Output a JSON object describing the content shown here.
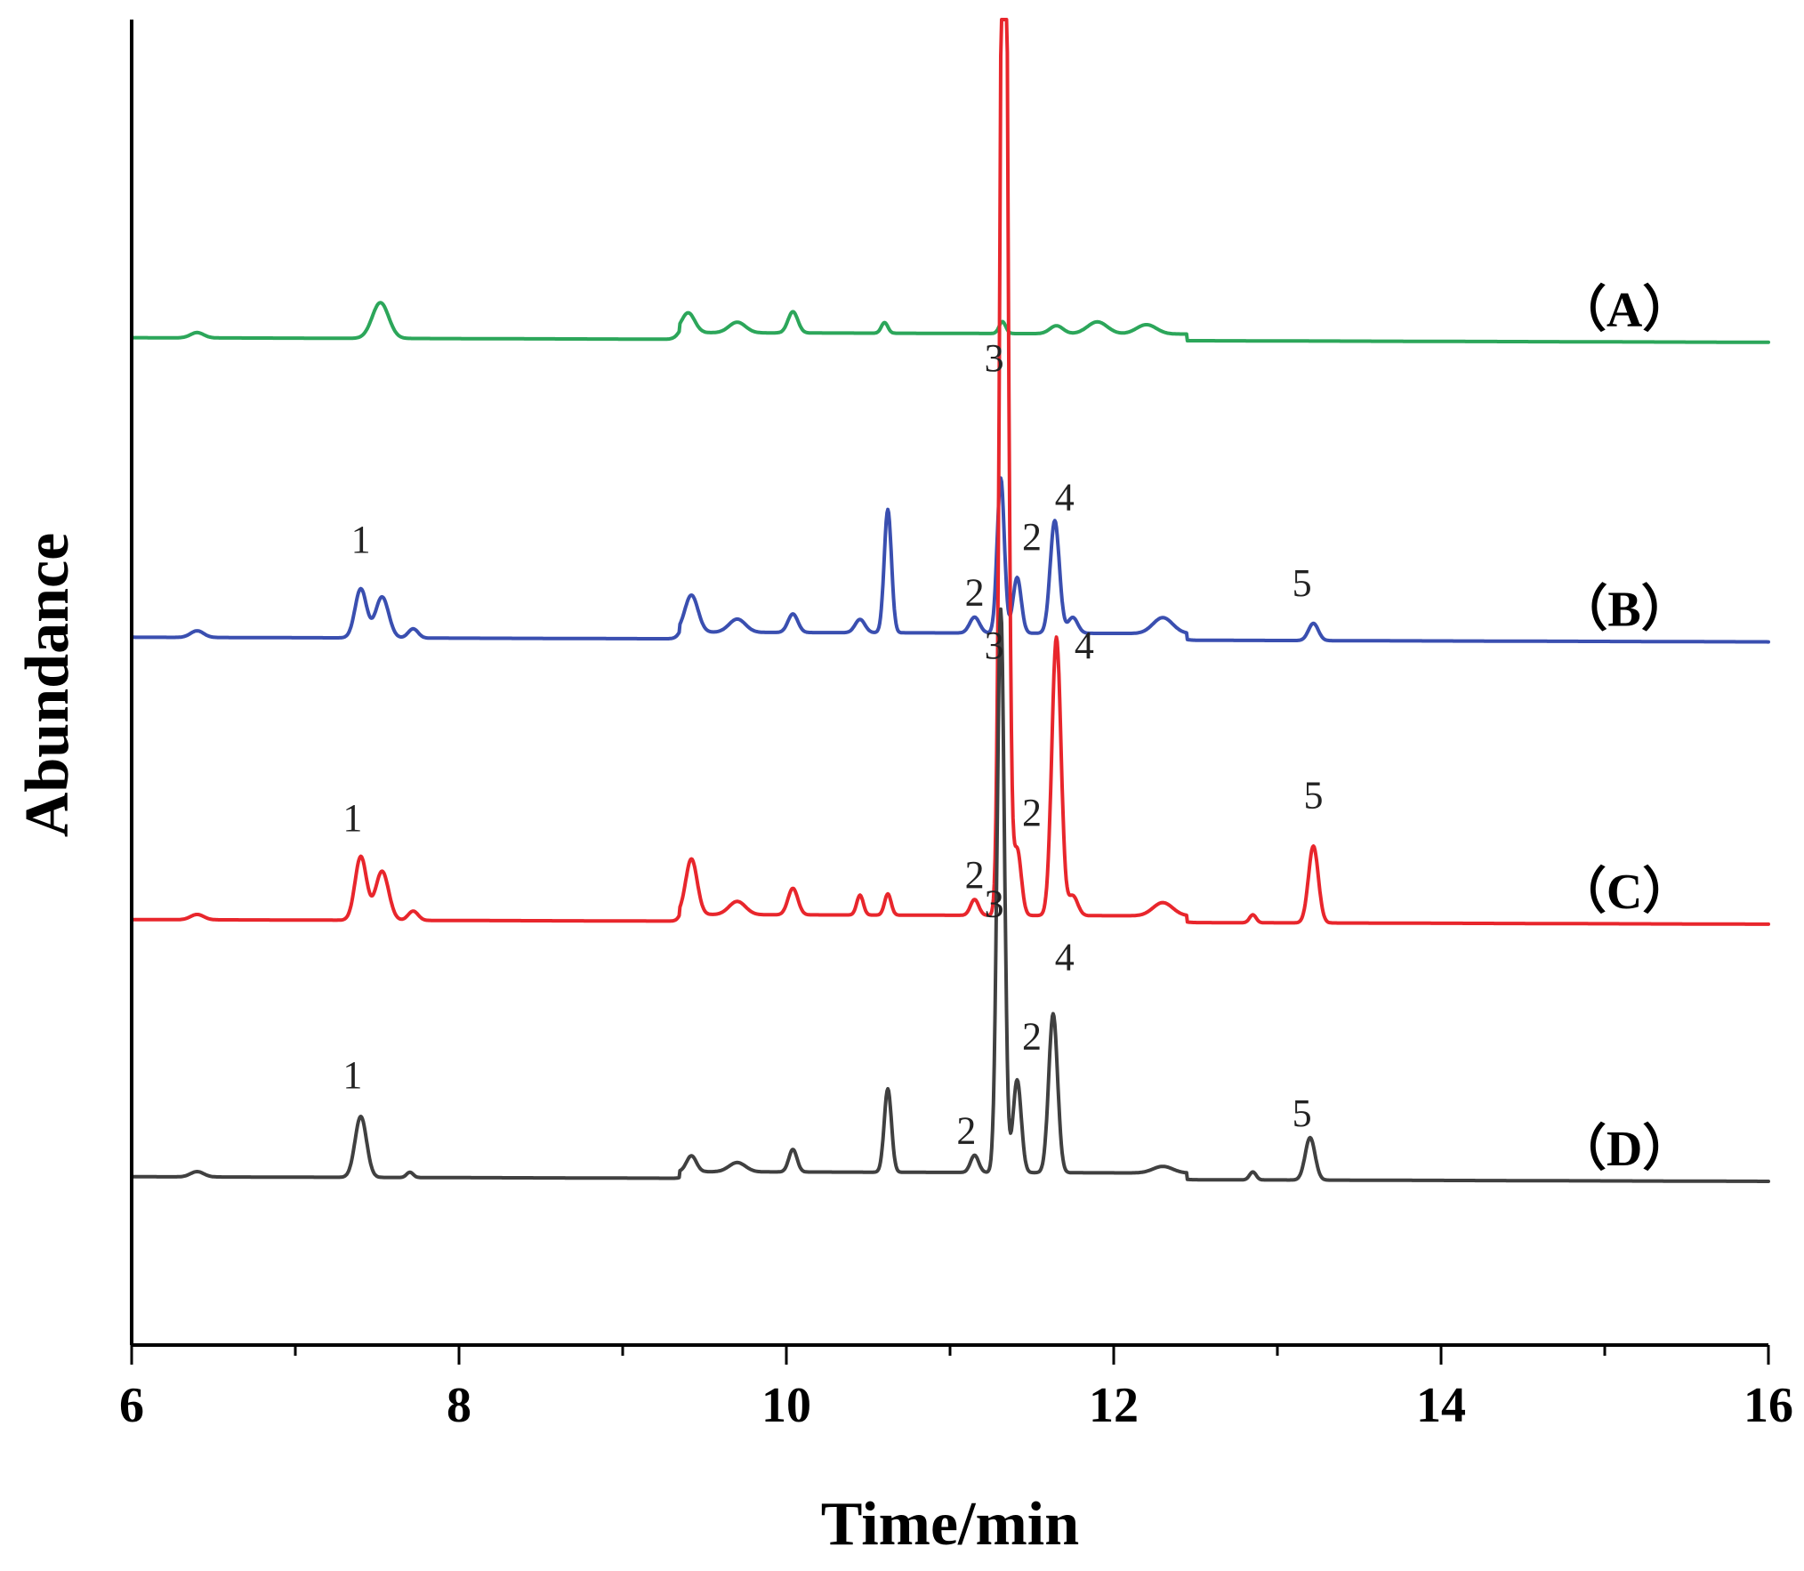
{
  "chart_data": {
    "type": "line",
    "title": "",
    "xlabel": "Time/min",
    "ylabel": "Abundance",
    "xlim": [
      6,
      16
    ],
    "xticks": [
      6,
      8,
      10,
      12,
      14,
      16
    ],
    "x_minor_step": 1,
    "grid": false,
    "y_tick_labels": false,
    "series": [
      {
        "name": "（A）",
        "color": "#2ca65a",
        "baseline": 0.76,
        "peaks": [
          {
            "x": 6.4,
            "h": 0.004,
            "w": 0.04
          },
          {
            "x": 7.52,
            "h": 0.027,
            "w": 0.05
          },
          {
            "x": 9.4,
            "h": 0.015,
            "w": 0.04
          },
          {
            "x": 9.7,
            "h": 0.008,
            "w": 0.05
          },
          {
            "x": 10.04,
            "h": 0.016,
            "w": 0.03
          },
          {
            "x": 10.6,
            "h": 0.008,
            "w": 0.02
          },
          {
            "x": 11.32,
            "h": 0.009,
            "w": 0.02
          },
          {
            "x": 11.65,
            "h": 0.006,
            "w": 0.04
          },
          {
            "x": 11.9,
            "h": 0.009,
            "w": 0.06
          },
          {
            "x": 12.2,
            "h": 0.007,
            "w": 0.06
          }
        ],
        "plateau": [
          9.35,
          12.45,
          0.005
        ],
        "labels": []
      },
      {
        "name": "（B）",
        "color": "#3a4fb0",
        "baseline": 0.534,
        "peaks": [
          {
            "x": 6.4,
            "h": 0.005,
            "w": 0.04
          },
          {
            "x": 7.4,
            "h": 0.037,
            "w": 0.035
          },
          {
            "x": 7.53,
            "h": 0.031,
            "w": 0.04
          },
          {
            "x": 7.72,
            "h": 0.007,
            "w": 0.03
          },
          {
            "x": 9.42,
            "h": 0.028,
            "w": 0.04
          },
          {
            "x": 9.7,
            "h": 0.01,
            "w": 0.05
          },
          {
            "x": 10.04,
            "h": 0.014,
            "w": 0.03
          },
          {
            "x": 10.45,
            "h": 0.01,
            "w": 0.03
          },
          {
            "x": 10.62,
            "h": 0.093,
            "w": 0.022
          },
          {
            "x": 11.15,
            "h": 0.012,
            "w": 0.03
          },
          {
            "x": 11.31,
            "h": 0.117,
            "w": 0.022
          },
          {
            "x": 11.41,
            "h": 0.042,
            "w": 0.025
          },
          {
            "x": 11.64,
            "h": 0.085,
            "w": 0.028
          },
          {
            "x": 11.75,
            "h": 0.012,
            "w": 0.03
          },
          {
            "x": 12.3,
            "h": 0.012,
            "w": 0.06
          },
          {
            "x": 13.22,
            "h": 0.013,
            "w": 0.03
          }
        ],
        "plateau": [
          9.35,
          12.45,
          0.005
        ],
        "labels": [
          {
            "text": "1",
            "x": 7.4,
            "y": 0.598
          },
          {
            "text": "2",
            "x": 11.15,
            "y": 0.558
          },
          {
            "text": "3",
            "x": 11.27,
            "y": 0.735
          },
          {
            "text": "2",
            "x": 11.5,
            "y": 0.6
          },
          {
            "text": "4",
            "x": 11.7,
            "y": 0.63
          },
          {
            "text": "5",
            "x": 13.15,
            "y": 0.565
          }
        ]
      },
      {
        "name": "（C）",
        "color": "#e8262c",
        "baseline": 0.321,
        "peaks": [
          {
            "x": 6.4,
            "h": 0.004,
            "w": 0.04
          },
          {
            "x": 7.4,
            "h": 0.048,
            "w": 0.035
          },
          {
            "x": 7.53,
            "h": 0.037,
            "w": 0.04
          },
          {
            "x": 7.72,
            "h": 0.007,
            "w": 0.03
          },
          {
            "x": 9.42,
            "h": 0.042,
            "w": 0.035
          },
          {
            "x": 9.7,
            "h": 0.01,
            "w": 0.05
          },
          {
            "x": 10.04,
            "h": 0.02,
            "w": 0.03
          },
          {
            "x": 10.45,
            "h": 0.015,
            "w": 0.02
          },
          {
            "x": 10.62,
            "h": 0.016,
            "w": 0.02
          },
          {
            "x": 11.15,
            "h": 0.012,
            "w": 0.025
          },
          {
            "x": 11.33,
            "h": 0.98,
            "w": 0.022
          },
          {
            "x": 11.41,
            "h": 0.05,
            "w": 0.025
          },
          {
            "x": 11.65,
            "h": 0.21,
            "w": 0.028
          },
          {
            "x": 11.75,
            "h": 0.015,
            "w": 0.03
          },
          {
            "x": 12.3,
            "h": 0.01,
            "w": 0.06
          },
          {
            "x": 12.85,
            "h": 0.006,
            "w": 0.02
          },
          {
            "x": 13.22,
            "h": 0.058,
            "w": 0.03
          }
        ],
        "plateau": [
          9.35,
          12.45,
          0.005
        ],
        "labels": [
          {
            "text": "1",
            "x": 7.35,
            "y": 0.388
          },
          {
            "text": "2",
            "x": 11.15,
            "y": 0.345
          },
          {
            "text": "3",
            "x": 11.27,
            "y": 0.518
          },
          {
            "text": "2",
            "x": 11.5,
            "y": 0.392
          },
          {
            "text": "4",
            "x": 11.82,
            "y": 0.518
          },
          {
            "text": "5",
            "x": 13.22,
            "y": 0.405
          }
        ]
      },
      {
        "name": "（D）",
        "color": "#404040",
        "baseline": 0.127,
        "peaks": [
          {
            "x": 6.4,
            "h": 0.004,
            "w": 0.04
          },
          {
            "x": 7.4,
            "h": 0.046,
            "w": 0.035
          },
          {
            "x": 7.7,
            "h": 0.004,
            "w": 0.02
          },
          {
            "x": 9.42,
            "h": 0.012,
            "w": 0.03
          },
          {
            "x": 9.7,
            "h": 0.007,
            "w": 0.05
          },
          {
            "x": 10.04,
            "h": 0.017,
            "w": 0.025
          },
          {
            "x": 10.62,
            "h": 0.063,
            "w": 0.022
          },
          {
            "x": 11.15,
            "h": 0.013,
            "w": 0.025
          },
          {
            "x": 11.31,
            "h": 0.425,
            "w": 0.022
          },
          {
            "x": 11.41,
            "h": 0.07,
            "w": 0.025
          },
          {
            "x": 11.63,
            "h": 0.12,
            "w": 0.027
          },
          {
            "x": 12.3,
            "h": 0.005,
            "w": 0.06
          },
          {
            "x": 12.85,
            "h": 0.006,
            "w": 0.02
          },
          {
            "x": 13.2,
            "h": 0.032,
            "w": 0.03
          }
        ],
        "plateau": [
          9.35,
          12.45,
          0.005
        ],
        "labels": [
          {
            "text": "1",
            "x": 7.35,
            "y": 0.194
          },
          {
            "text": "2",
            "x": 11.1,
            "y": 0.152
          },
          {
            "text": "3",
            "x": 11.27,
            "y": 0.323
          },
          {
            "text": "2",
            "x": 11.5,
            "y": 0.223
          },
          {
            "text": "4",
            "x": 11.7,
            "y": 0.283
          },
          {
            "text": "5",
            "x": 13.15,
            "y": 0.165
          }
        ]
      }
    ]
  }
}
